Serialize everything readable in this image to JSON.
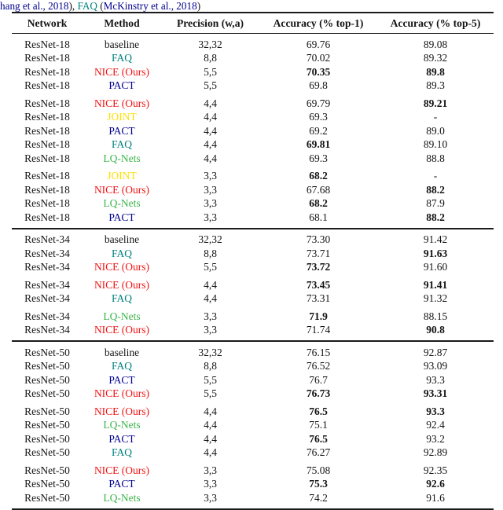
{
  "colors": {
    "text_black": "#141414",
    "nice_red": "#f21414",
    "faq_teal": "#00827f",
    "pact_navy": "#000090",
    "joint_yellow": "#ffdf00",
    "lqnets_green": "#3cb54a",
    "citation_blue": "#000090"
  },
  "caption": {
    "parts": [
      {
        "text": "hang et al., 2018",
        "color": "citation_blue",
        "link": true
      },
      {
        "text": "), ",
        "color": "text_black",
        "link": false
      },
      {
        "text": "FAQ",
        "color": "faq_teal",
        "link": true
      },
      {
        "text": " (",
        "color": "text_black",
        "link": false
      },
      {
        "text": "McKinstry et al., 2018",
        "color": "citation_blue",
        "link": true
      },
      {
        "text": ")",
        "color": "text_black",
        "link": false
      }
    ]
  },
  "table": {
    "headers": [
      "Network",
      "Method",
      "Precision (w,a)",
      "Accuracy (% top-1)",
      "Accuracy (% top-5)"
    ],
    "sections": [
      {
        "network": "ResNet-18",
        "groups": [
          [
            {
              "network": "ResNet-18",
              "method": "baseline",
              "method_color": "text_black",
              "precision": "32,32",
              "top1": "69.76",
              "top1_bold": false,
              "top5": "89.08",
              "top5_bold": false
            },
            {
              "network": "ResNet-18",
              "method": "FAQ",
              "method_color": "faq_teal",
              "precision": "8,8",
              "top1": "70.02",
              "top1_bold": false,
              "top5": "89.32",
              "top5_bold": false
            },
            {
              "network": "ResNet-18",
              "method": "NICE (Ours)",
              "method_color": "nice_red",
              "precision": "5,5",
              "top1": "70.35",
              "top1_bold": true,
              "top5": "89.8",
              "top5_bold": true
            },
            {
              "network": "ResNet-18",
              "method": "PACT",
              "method_color": "pact_navy",
              "precision": "5,5",
              "top1": "69.8",
              "top1_bold": false,
              "top5": "89.3",
              "top5_bold": false
            }
          ],
          [
            {
              "network": "ResNet-18",
              "method": "NICE (Ours)",
              "method_color": "nice_red",
              "precision": "4,4",
              "top1": "69.79",
              "top1_bold": false,
              "top5": "89.21",
              "top5_bold": true
            },
            {
              "network": "ResNet-18",
              "method": "JOINT",
              "method_color": "joint_yellow",
              "precision": "4,4",
              "top1": "69.3",
              "top1_bold": false,
              "top5": "-",
              "top5_bold": false
            },
            {
              "network": "ResNet-18",
              "method": "PACT",
              "method_color": "pact_navy",
              "precision": "4,4",
              "top1": "69.2",
              "top1_bold": false,
              "top5": "89.0",
              "top5_bold": false
            },
            {
              "network": "ResNet-18",
              "method": "FAQ",
              "method_color": "faq_teal",
              "precision": "4,4",
              "top1": "69.81",
              "top1_bold": true,
              "top5": "89.10",
              "top5_bold": false
            },
            {
              "network": "ResNet-18",
              "method": "LQ-Nets",
              "method_color": "lqnets_green",
              "precision": "4,4",
              "top1": "69.3",
              "top1_bold": false,
              "top5": "88.8",
              "top5_bold": false
            }
          ],
          [
            {
              "network": "ResNet-18",
              "method": "JOINT",
              "method_color": "joint_yellow",
              "precision": "3,3",
              "top1": "68.2",
              "top1_bold": true,
              "top5": "-",
              "top5_bold": false
            },
            {
              "network": "ResNet-18",
              "method": "NICE (Ours)",
              "method_color": "nice_red",
              "precision": "3,3",
              "top1": "67.68",
              "top1_bold": false,
              "top5": "88.2",
              "top5_bold": true
            },
            {
              "network": "ResNet-18",
              "method": "LQ-Nets",
              "method_color": "lqnets_green",
              "precision": "3,3",
              "top1": "68.2",
              "top1_bold": true,
              "top5": "87.9",
              "top5_bold": false
            },
            {
              "network": "ResNet-18",
              "method": "PACT",
              "method_color": "pact_navy",
              "precision": "3,3",
              "top1": "68.1",
              "top1_bold": false,
              "top5": "88.2",
              "top5_bold": true
            }
          ]
        ]
      },
      {
        "network": "ResNet-34",
        "groups": [
          [
            {
              "network": "ResNet-34",
              "method": "baseline",
              "method_color": "text_black",
              "precision": "32,32",
              "top1": "73.30",
              "top1_bold": false,
              "top5": "91.42",
              "top5_bold": false
            },
            {
              "network": "ResNet-34",
              "method": "FAQ",
              "method_color": "faq_teal",
              "precision": "8,8",
              "top1": "73.71",
              "top1_bold": false,
              "top5": "91.63",
              "top5_bold": true
            },
            {
              "network": "ResNet-34",
              "method": "NICE (Ours)",
              "method_color": "nice_red",
              "precision": "5,5",
              "top1": "73.72",
              "top1_bold": true,
              "top5": "91.60",
              "top5_bold": false
            }
          ],
          [
            {
              "network": "ResNet-34",
              "method": "NICE (Ours)",
              "method_color": "nice_red",
              "precision": "4,4",
              "top1": "73.45",
              "top1_bold": true,
              "top5": "91.41",
              "top5_bold": true
            },
            {
              "network": "ResNet-34",
              "method": "FAQ",
              "method_color": "faq_teal",
              "precision": "4,4",
              "top1": "73.31",
              "top1_bold": false,
              "top5": "91.32",
              "top5_bold": false
            }
          ],
          [
            {
              "network": "ResNet-34",
              "method": "LQ-Nets",
              "method_color": "lqnets_green",
              "precision": "3,3",
              "top1": "71.9",
              "top1_bold": true,
              "top5": "88.15",
              "top5_bold": false
            },
            {
              "network": "ResNet-34",
              "method": "NICE (Ours)",
              "method_color": "nice_red",
              "precision": "3,3",
              "top1": "71.74",
              "top1_bold": false,
              "top5": "90.8",
              "top5_bold": true
            }
          ]
        ]
      },
      {
        "network": "ResNet-50",
        "groups": [
          [
            {
              "network": "ResNet-50",
              "method": "baseline",
              "method_color": "text_black",
              "precision": "32,32",
              "top1": "76.15",
              "top1_bold": false,
              "top5": "92.87",
              "top5_bold": false
            },
            {
              "network": "ResNet-50",
              "method": "FAQ",
              "method_color": "faq_teal",
              "precision": "8,8",
              "top1": "76.52",
              "top1_bold": false,
              "top5": "93.09",
              "top5_bold": false
            },
            {
              "network": "ResNet-50",
              "method": "PACT",
              "method_color": "pact_navy",
              "precision": "5,5",
              "top1": "76.7",
              "top1_bold": false,
              "top5": "93.3",
              "top5_bold": false
            },
            {
              "network": "ResNet-50",
              "method": "NICE (Ours)",
              "method_color": "nice_red",
              "precision": "5,5",
              "top1": "76.73",
              "top1_bold": true,
              "top5": "93.31",
              "top5_bold": true
            }
          ],
          [
            {
              "network": "ResNet-50",
              "method": "NICE (Ours)",
              "method_color": "nice_red",
              "precision": "4,4",
              "top1": "76.5",
              "top1_bold": true,
              "top5": "93.3",
              "top5_bold": true
            },
            {
              "network": "ResNet-50",
              "method": "LQ-Nets",
              "method_color": "lqnets_green",
              "precision": "4,4",
              "top1": "75.1",
              "top1_bold": false,
              "top5": "92.4",
              "top5_bold": false
            },
            {
              "network": "ResNet-50",
              "method": "PACT",
              "method_color": "pact_navy",
              "precision": "4,4",
              "top1": "76.5",
              "top1_bold": true,
              "top5": "93.2",
              "top5_bold": false
            },
            {
              "network": "ResNet-50",
              "method": "FAQ",
              "method_color": "faq_teal",
              "precision": "4,4",
              "top1": "76.27",
              "top1_bold": false,
              "top5": "92.89",
              "top5_bold": false
            }
          ],
          [
            {
              "network": "ResNet-50",
              "method": "NICE (Ours)",
              "method_color": "nice_red",
              "precision": "3,3",
              "top1": "75.08",
              "top1_bold": false,
              "top5": "92.35",
              "top5_bold": false
            },
            {
              "network": "ResNet-50",
              "method": "PACT",
              "method_color": "pact_navy",
              "precision": "3,3",
              "top1": "75.3",
              "top1_bold": true,
              "top5": "92.6",
              "top5_bold": true
            },
            {
              "network": "ResNet-50",
              "method": "LQ-Nets",
              "method_color": "lqnets_green",
              "precision": "3,3",
              "top1": "74.2",
              "top1_bold": false,
              "top5": "91.6",
              "top5_bold": false
            }
          ]
        ]
      }
    ]
  }
}
